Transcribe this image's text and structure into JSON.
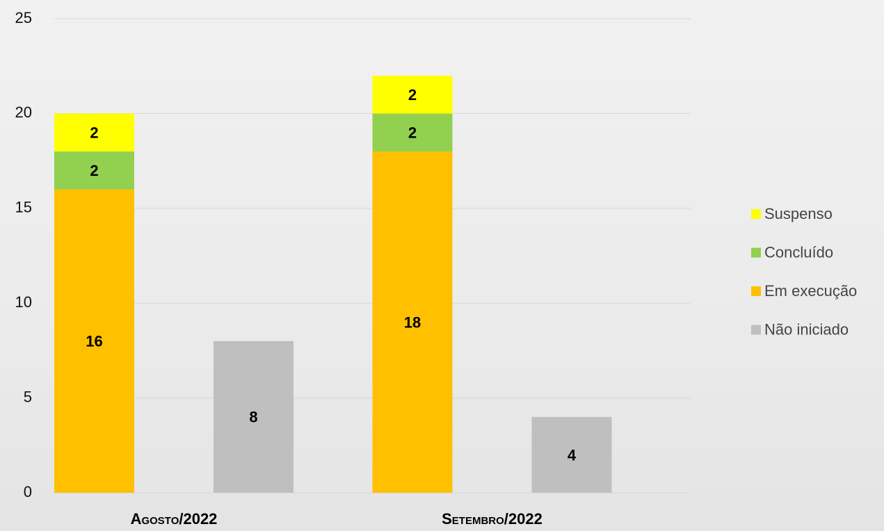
{
  "chart_data": {
    "type": "bar",
    "categories": [
      "Agosto/2022",
      "Setembro/2022"
    ],
    "series": [
      {
        "name": "Suspenso",
        "color": "#ffff00",
        "values": [
          2,
          2
        ],
        "stack": 1
      },
      {
        "name": "Concluído",
        "color": "#92d050",
        "values": [
          2,
          2
        ],
        "stack": 1
      },
      {
        "name": "Em execução",
        "color": "#ffc000",
        "values": [
          16,
          18
        ],
        "stack": 1
      },
      {
        "name": "Não iniciado",
        "color": "#bfbfbf",
        "values": [
          8,
          4
        ],
        "stack": 2
      }
    ],
    "ylim": [
      0,
      25
    ],
    "yticks": [
      0,
      5,
      10,
      15,
      20,
      25
    ],
    "grid": true,
    "legend": "right"
  }
}
